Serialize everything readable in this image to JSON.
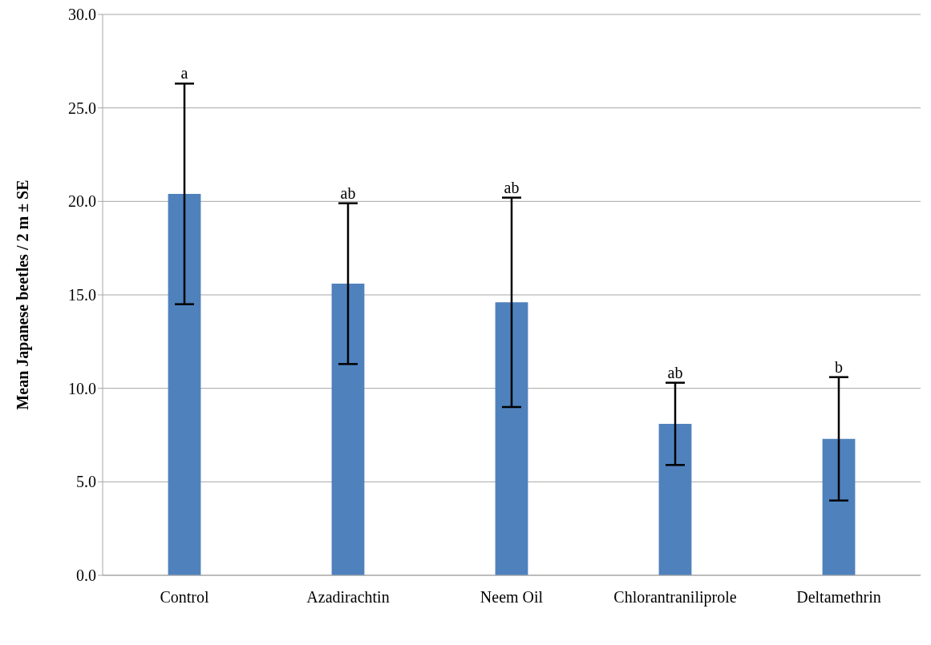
{
  "chart_data": {
    "type": "bar",
    "ylabel": "Mean Japanese beetles / 2 m ± SE",
    "categories": [
      "Control",
      "Azadirachtin",
      "Neem Oil",
      "Chlorantraniliprole",
      "Deltamethrin"
    ],
    "values": [
      20.4,
      15.6,
      14.6,
      8.1,
      7.3
    ],
    "errors": [
      5.9,
      4.3,
      5.6,
      2.2,
      3.3
    ],
    "color": "#4f81bd",
    "ylim": [
      0,
      30
    ],
    "yticks": [
      {
        "value": 0,
        "label": "0.0"
      },
      {
        "value": 5,
        "label": "5.0"
      },
      {
        "value": 10,
        "label": "10.0"
      },
      {
        "value": 15,
        "label": "15.0"
      },
      {
        "value": 20,
        "label": "20.0"
      },
      {
        "value": 25,
        "label": "25.0"
      },
      {
        "value": 30,
        "label": "30.0"
      }
    ],
    "grid": "y",
    "annotations": [
      {
        "text": "a",
        "x": "Control",
        "y": 26.3
      },
      {
        "text": "ab",
        "x": "Azadirachtin",
        "y": 19.9
      },
      {
        "text": "ab",
        "x": "Neem Oil",
        "y": 20.2
      },
      {
        "text": "ab",
        "x": "Chlorantraniliprole",
        "y": 10.3
      },
      {
        "text": "b",
        "x": "Deltamethrin",
        "y": 10.6
      }
    ]
  }
}
